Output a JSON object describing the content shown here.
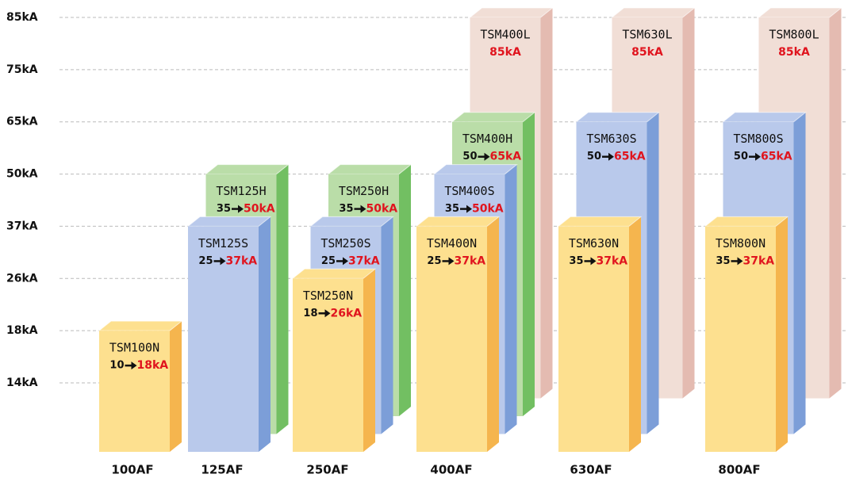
{
  "chart_data": {
    "type": "bar3d",
    "ylim": [
      0,
      85
    ],
    "yticks": [
      {
        "value": 14,
        "label": "14kA"
      },
      {
        "value": 18,
        "label": "18kA"
      },
      {
        "value": 26,
        "label": "26kA"
      },
      {
        "value": 37,
        "label": "37kA"
      },
      {
        "value": 50,
        "label": "50kA"
      },
      {
        "value": 65,
        "label": "65kA"
      },
      {
        "value": 75,
        "label": "75kA"
      },
      {
        "value": 85,
        "label": "85kA"
      }
    ],
    "grid": true,
    "categories": [
      "100AF",
      "125AF",
      "250AF",
      "400AF",
      "630AF",
      "800AF"
    ],
    "groups": [
      {
        "bars": [
          {
            "name": "TSM100N",
            "from": 10,
            "value": 18,
            "value_label": "18kA",
            "color": "#fde08f",
            "side_color": "#f5b54e"
          }
        ]
      },
      {
        "bars": [
          {
            "name": "TSM125S",
            "from": 25,
            "value": 37,
            "value_label": "37kA",
            "color": "#b9c9eb",
            "side_color": "#7c9ed8"
          },
          {
            "name": "TSM125H",
            "from": 35,
            "value": 50,
            "value_label": "50kA",
            "color": "#badda8",
            "side_color": "#72bf62"
          }
        ]
      },
      {
        "bars": [
          {
            "name": "TSM250N",
            "from": 18,
            "value": 26,
            "value_label": "26kA",
            "color": "#fde08f",
            "side_color": "#f5b54e"
          },
          {
            "name": "TSM250S",
            "from": 25,
            "value": 37,
            "value_label": "37kA",
            "color": "#b9c9eb",
            "side_color": "#7c9ed8"
          },
          {
            "name": "TSM250H",
            "from": 35,
            "value": 50,
            "value_label": "50kA",
            "color": "#badda8",
            "side_color": "#72bf62"
          }
        ]
      },
      {
        "bars": [
          {
            "name": "TSM400N",
            "from": 25,
            "value": 37,
            "value_label": "37kA",
            "color": "#fde08f",
            "side_color": "#f5b54e"
          },
          {
            "name": "TSM400S",
            "from": 35,
            "value": 50,
            "value_label": "50kA",
            "color": "#b9c9eb",
            "side_color": "#7c9ed8"
          },
          {
            "name": "TSM400H",
            "from": 50,
            "value": 65,
            "value_label": "65kA",
            "color": "#badda8",
            "side_color": "#72bf62"
          },
          {
            "name": "TSM400L",
            "value": 85,
            "value_label": "85kA",
            "color": "#f1ded6",
            "side_color": "#e4bbb1"
          }
        ]
      },
      {
        "bars": [
          {
            "name": "TSM630N",
            "from": 35,
            "value": 37,
            "value_label": "37kA",
            "color": "#fde08f",
            "side_color": "#f5b54e"
          },
          {
            "name": "TSM630S",
            "from": 50,
            "value": 65,
            "value_label": "65kA",
            "color": "#b9c9eb",
            "side_color": "#7c9ed8"
          },
          {
            "name": "TSM630L",
            "value": 85,
            "value_label": "85kA",
            "color": "#f1ded6",
            "side_color": "#e4bbb1"
          }
        ]
      },
      {
        "bars": [
          {
            "name": "TSM800N",
            "from": 35,
            "value": 37,
            "value_label": "37kA",
            "color": "#fde08f",
            "side_color": "#f5b54e"
          },
          {
            "name": "TSM800S",
            "from": 50,
            "value": 65,
            "value_label": "65kA",
            "color": "#b9c9eb",
            "side_color": "#7c9ed8"
          },
          {
            "name": "TSM800L",
            "value": 85,
            "value_label": "85kA",
            "color": "#f1ded6",
            "side_color": "#e4bbb1"
          }
        ]
      }
    ]
  }
}
